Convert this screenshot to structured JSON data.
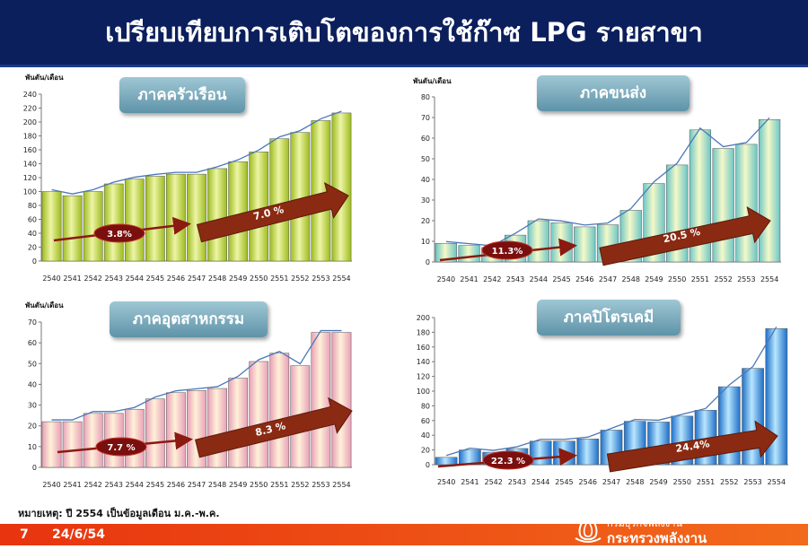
{
  "title": "เปรียบเทียบการเติบโตของการใช้ก๊าซ LPG รายสาขา",
  "note": "หมายเหตุ: ปี 2554 เป็นข้อมูลเดือน ม.ค.-พ.ค.",
  "footer": {
    "page": "7",
    "date": "24/6/54",
    "org_small": "กรมธุรกิจพลังงาน",
    "org_large": "กระทรวงพลังงาน"
  },
  "chart_data": [
    {
      "type": "bar",
      "title": "ภาคครัวเรือน",
      "ylabel": "พันตัน/เดือน",
      "ylim": [
        0,
        240
      ],
      "yticks": [
        "0",
        "20",
        "40",
        "60",
        "80",
        "100",
        "120",
        "140",
        "160",
        "180",
        "200",
        "220",
        "240"
      ],
      "categories": [
        "2540",
        "2541",
        "2542",
        "2543",
        "2544",
        "2545",
        "2546",
        "2547",
        "2548",
        "2549",
        "2550",
        "2551",
        "2552",
        "2553",
        "2554"
      ],
      "values": [
        100,
        94,
        100,
        111,
        118,
        122,
        125,
        125,
        133,
        143,
        157,
        176,
        185,
        202,
        213
      ],
      "bar_color": "#9cbb1e",
      "bar_highlight": "#eef5a6",
      "annotations": [
        "3.8%",
        "7.0 %"
      ]
    },
    {
      "type": "bar",
      "title": "ภาคขนส่ง",
      "ylabel": "พันตัน/เดือน",
      "ylim": [
        0,
        80
      ],
      "yticks": [
        "0",
        "10",
        "20",
        "30",
        "40",
        "50",
        "60",
        "70",
        "80"
      ],
      "categories": [
        "2540",
        "2541",
        "2542",
        "2543",
        "2544",
        "2545",
        "2546",
        "2547",
        "2548",
        "2549",
        "2550",
        "2551",
        "2552",
        "2553",
        "2554"
      ],
      "values": [
        9,
        8,
        7,
        13,
        20,
        19,
        17,
        18,
        25,
        38,
        47,
        64,
        55,
        57,
        69
      ],
      "bar_color": "#6cc6c6",
      "bar_highlight": "#f4f9c8",
      "annotations": [
        "11.3%",
        "20.5 %"
      ]
    },
    {
      "type": "bar",
      "title": "ภาคอุตสาหกรรม",
      "ylabel": "พันตัน/เดือน",
      "ylim": [
        0,
        70
      ],
      "yticks": [
        "0",
        "10",
        "20",
        "30",
        "40",
        "50",
        "60",
        "70"
      ],
      "categories": [
        "2540",
        "2541",
        "2542",
        "2543",
        "2544",
        "2545",
        "2546",
        "2547",
        "2548",
        "2549",
        "2550",
        "2551",
        "2552",
        "2553",
        "2554"
      ],
      "values": [
        22,
        22,
        26,
        26,
        28,
        33,
        36,
        37,
        38,
        43,
        51,
        55,
        49,
        65,
        65
      ],
      "bar_color": "#e8a0b8",
      "bar_highlight": "#fff1d8",
      "annotations": [
        "7.7 %",
        "8.3 %"
      ]
    },
    {
      "type": "bar",
      "title": "ภาคปิโตรเคมี",
      "ylabel": "",
      "ylim": [
        0,
        200
      ],
      "yticks": [
        "0",
        "20",
        "40",
        "60",
        "80",
        "100",
        "120",
        "140",
        "160",
        "180",
        "200"
      ],
      "categories": [
        "2540",
        "2541",
        "2542",
        "2543",
        "2544",
        "2545",
        "2546",
        "2547",
        "2548",
        "2549",
        "2550",
        "2551",
        "2552",
        "2553",
        "2554"
      ],
      "values": [
        10,
        20,
        17,
        22,
        32,
        32,
        35,
        47,
        59,
        58,
        66,
        74,
        106,
        131,
        185
      ],
      "bar_color": "#1e6fc7",
      "bar_highlight": "#b8e6ff",
      "annotations": [
        "22.3 %",
        "24.4%"
      ]
    }
  ]
}
